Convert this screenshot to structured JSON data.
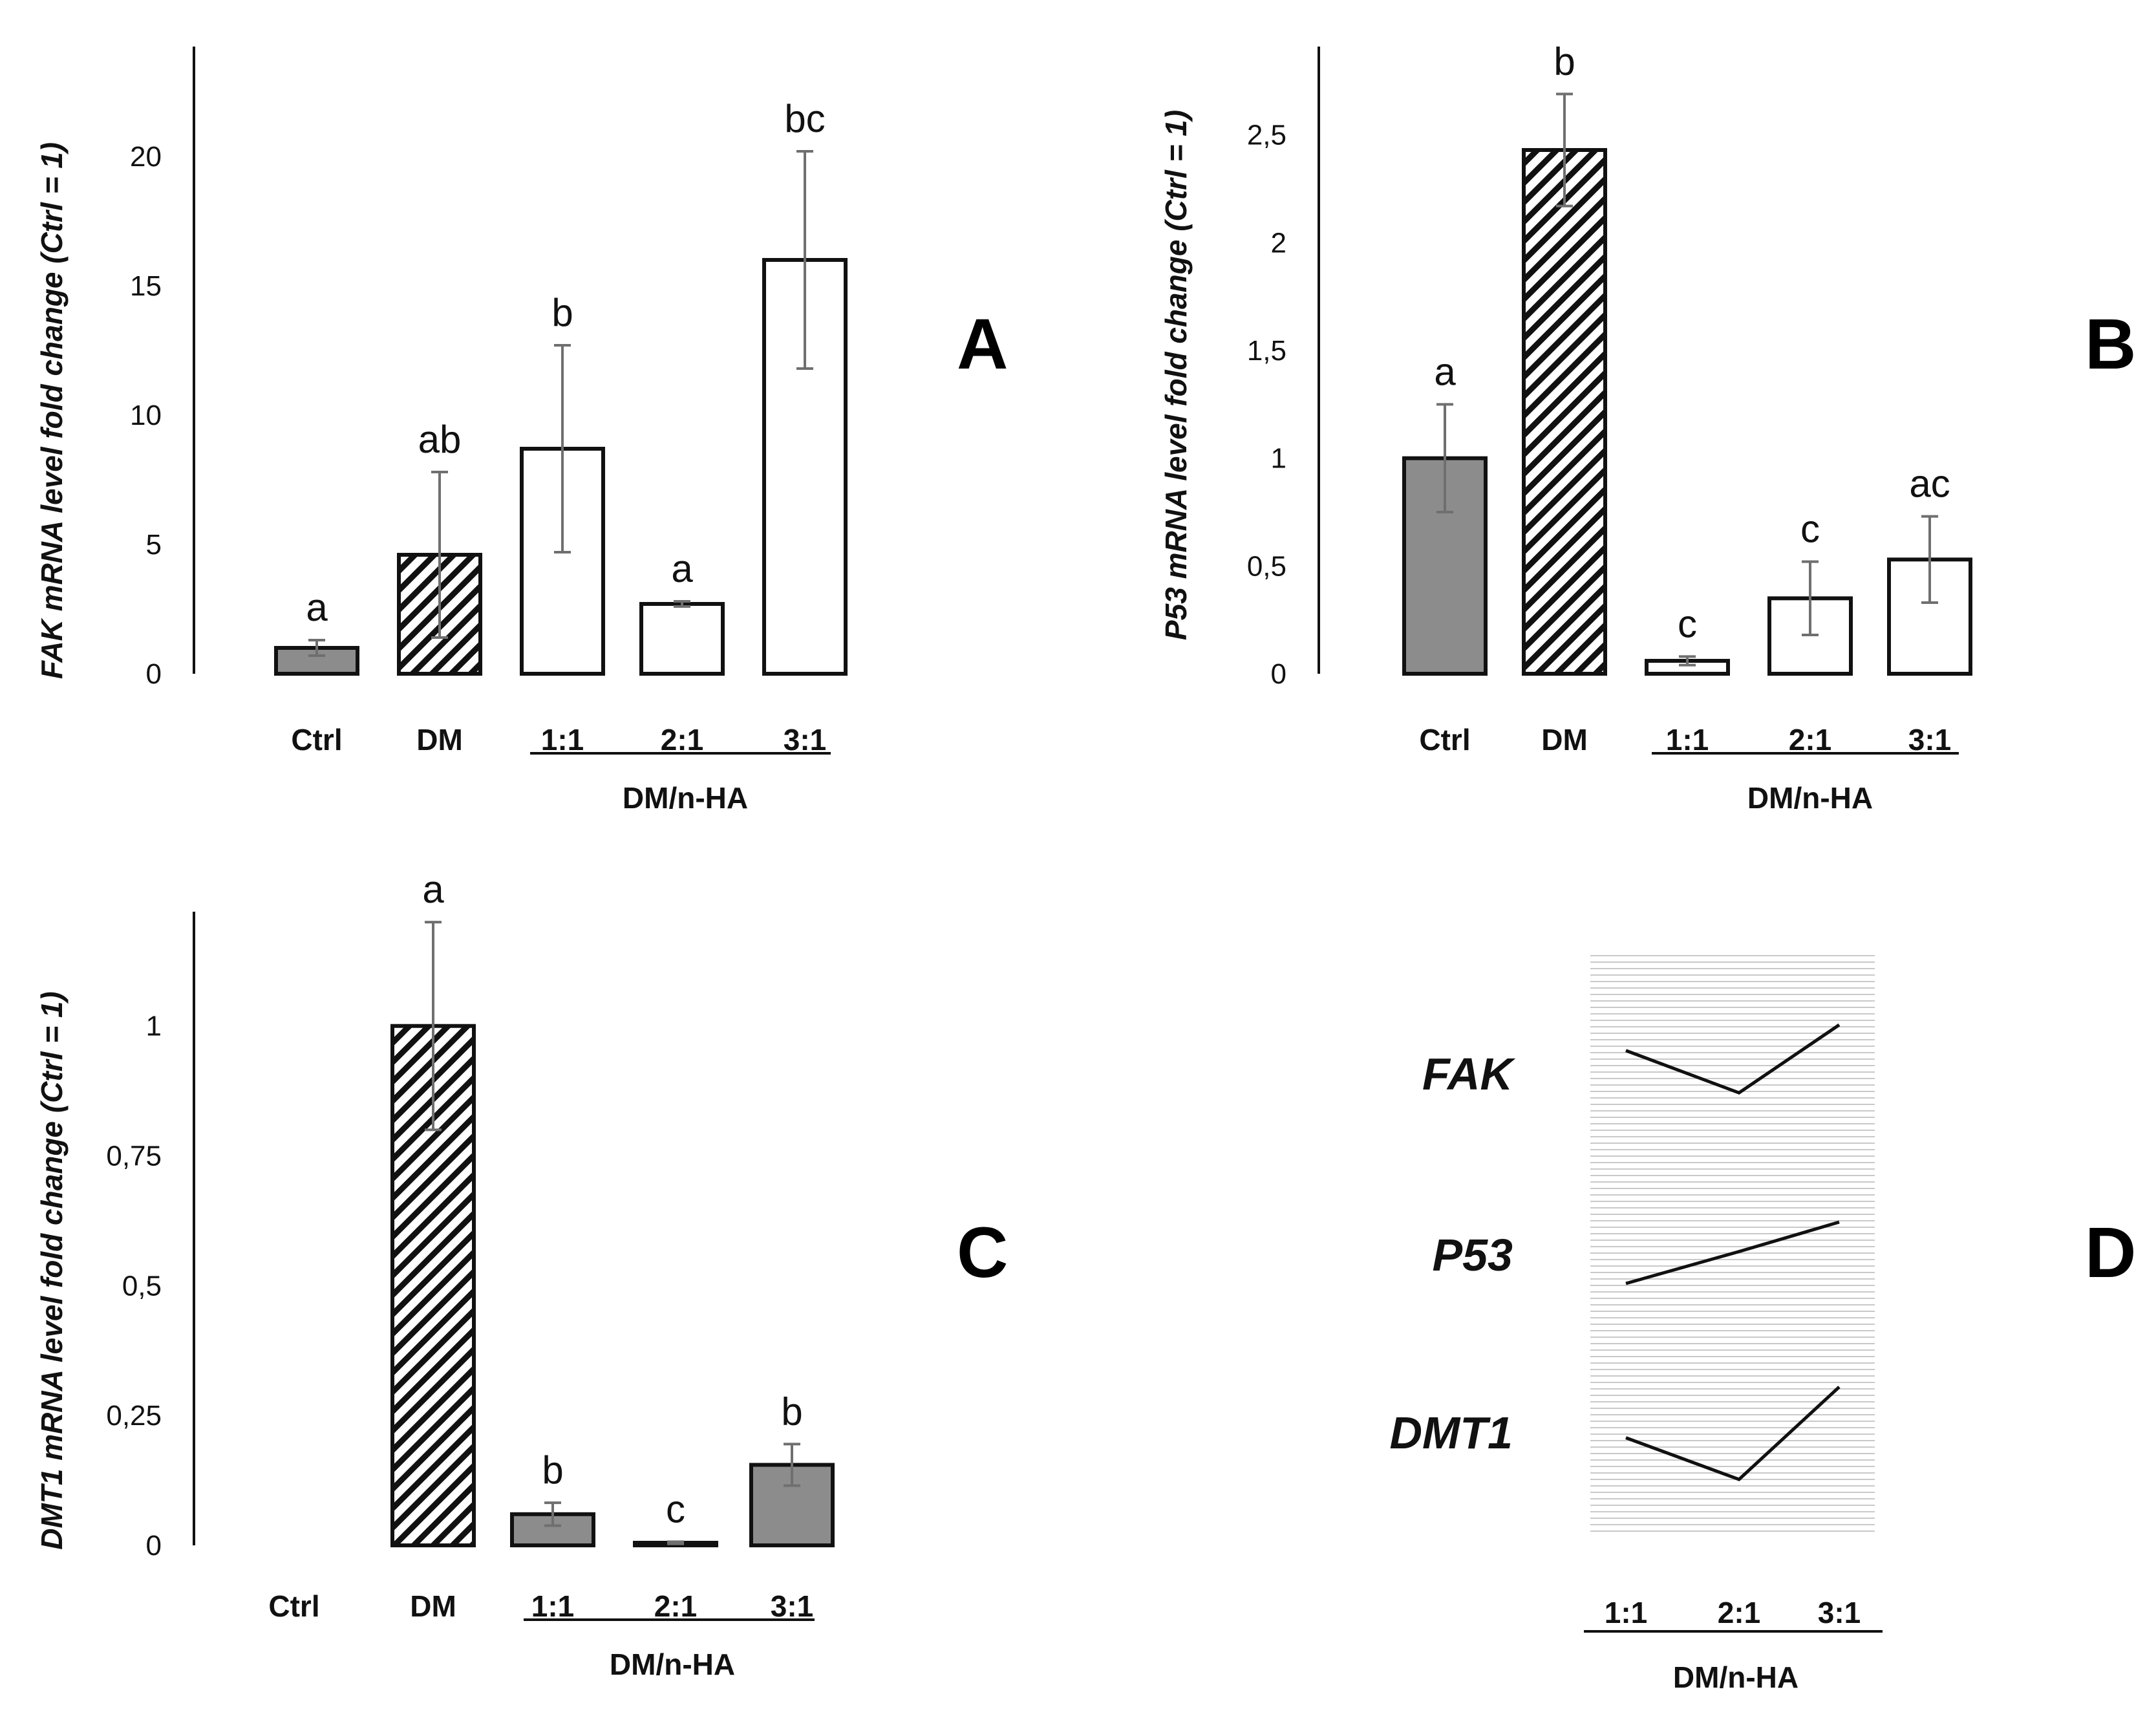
{
  "colors": {
    "gray": "#8c8c8c",
    "white": "#ffffff",
    "axis": "#111111",
    "error": "#6f6f6f",
    "stripe": "#c9c9c9"
  },
  "panels": [
    {
      "id": "A",
      "letter": "A",
      "ylabel": "FAK mRNA level fold change (Ctrl = 1)",
      "group_label": "DM/n-HA"
    },
    {
      "id": "B",
      "letter": "B",
      "ylabel": "P53 mRNA level fold change (Ctrl = 1)",
      "group_label": "DM/n-HA"
    },
    {
      "id": "C",
      "letter": "C",
      "ylabel": "DMT1 mRNA level fold change (Ctrl = 1)",
      "group_label": "DM/n-HA"
    },
    {
      "id": "D",
      "letter": "D",
      "group_label": "DM/n-HA"
    }
  ],
  "chart_data": [
    {
      "panel": "A",
      "type": "bar",
      "categories": [
        "Ctrl",
        "DM",
        "1:1",
        "2:1",
        "3:1"
      ],
      "values": [
        1.0,
        4.6,
        8.7,
        2.7,
        16.0
      ],
      "errors": [
        0.3,
        3.2,
        4.0,
        0.1,
        4.2
      ],
      "letters": [
        "a",
        "ab",
        "b",
        "a",
        "bc"
      ],
      "fills": [
        "gray",
        "hatch",
        "white",
        "white",
        "white"
      ],
      "ylim": [
        0,
        24
      ],
      "yticks": [
        0,
        5,
        10,
        15,
        20
      ],
      "ytick_labels": [
        "0",
        "5",
        "10",
        "15",
        "20"
      ],
      "ylabel": "FAK mRNA level fold change (Ctrl = 1)",
      "xgroup": "DM/n-HA"
    },
    {
      "panel": "B",
      "type": "bar",
      "categories": [
        "Ctrl",
        "DM",
        "1:1",
        "2:1",
        "3:1"
      ],
      "values": [
        1.0,
        2.43,
        0.06,
        0.35,
        0.53
      ],
      "errors": [
        0.25,
        0.26,
        0.02,
        0.17,
        0.2
      ],
      "letters": [
        "a",
        "b",
        "c",
        "c",
        "ac"
      ],
      "fills": [
        "gray",
        "hatch",
        "white",
        "white",
        "white"
      ],
      "ylim": [
        0,
        2.88
      ],
      "yticks": [
        0,
        0.5,
        1,
        1.5,
        2,
        2.5
      ],
      "ytick_labels": [
        "0",
        "0,5",
        "1",
        "1,5",
        "2",
        "2,5"
      ],
      "ylabel": "P53 mRNA level fold change (Ctrl = 1)",
      "xgroup": "DM/n-HA"
    },
    {
      "panel": "C",
      "type": "bar",
      "categories": [
        "Ctrl",
        "DM",
        "1:1",
        "2:1",
        "3:1"
      ],
      "values": [
        0,
        1.0,
        0.06,
        0.005,
        0.155
      ],
      "errors": [
        0,
        0.2,
        0.022,
        0.002,
        0.04
      ],
      "letters": [
        "",
        "a",
        "b",
        "c",
        "b"
      ],
      "fills": [
        "none",
        "hatch",
        "gray",
        "gray",
        "gray"
      ],
      "ylim": [
        0,
        1.22
      ],
      "yticks": [
        0,
        0.25,
        0.5,
        0.75,
        1
      ],
      "ytick_labels": [
        "0",
        "0,25",
        "0,5",
        "0,75",
        "1"
      ],
      "ylabel": "DMT1 mRNA level fold change (Ctrl = 1)",
      "xgroup": "DM/n-HA"
    },
    {
      "panel": "D",
      "type": "line",
      "categories": [
        "1:1",
        "2:1",
        "3:1"
      ],
      "series": [
        {
          "name": "FAK",
          "values": [
            0.72,
            0.26,
            1.0
          ]
        },
        {
          "name": "P53",
          "values": [
            0.0,
            0.52,
            1.0
          ]
        },
        {
          "name": "DMT1",
          "values": [
            0.45,
            0.0,
            1.0
          ]
        }
      ],
      "xgroup": "DM/n-HA"
    }
  ]
}
